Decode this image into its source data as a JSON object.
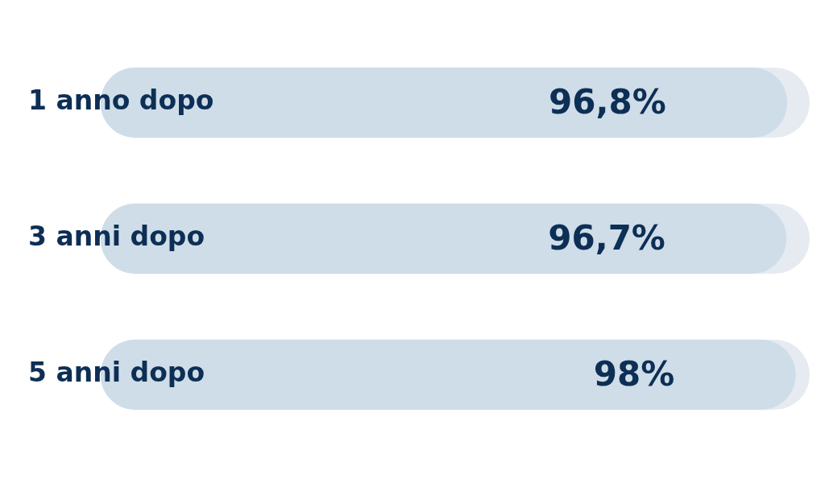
{
  "chart_data": {
    "type": "bar",
    "orientation": "horizontal",
    "categories": [
      "1 anno dopo",
      "3 anni dopo",
      "5 anni dopo"
    ],
    "series": [
      {
        "color": "#cfdde9",
        "values": [
          96.8,
          96.7,
          98
        ],
        "value_labels": [
          "96,8%",
          "96,7%",
          "98%"
        ]
      }
    ],
    "xlim": [
      0,
      100
    ],
    "legend": false,
    "tick_labels": "y"
  }
}
